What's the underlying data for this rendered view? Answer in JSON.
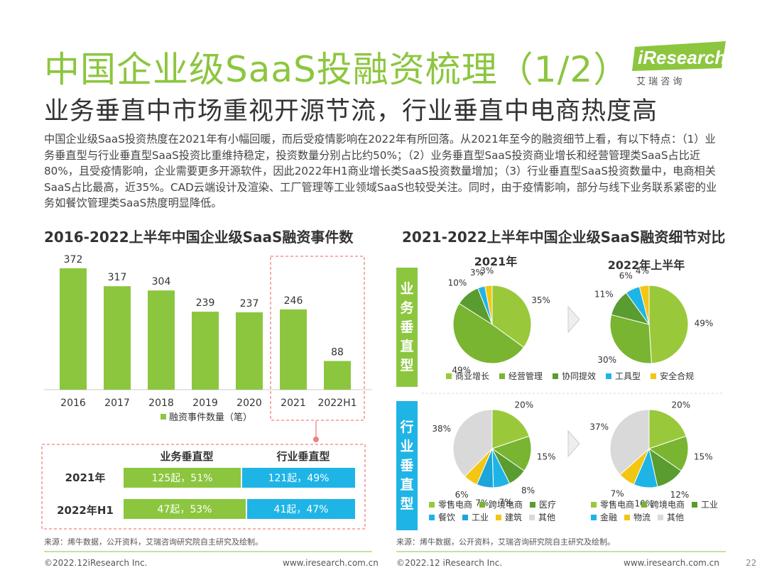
{
  "page": {
    "title": "中国企业级SaaS投融资梳理（1/2）",
    "subtitle": "业务垂直中市场重视开源节流，行业垂直中电商热度高",
    "intro": "中国企业级SaaS投资热度在2021年有小幅回暖，而后受疫情影响在2022年有所回落。从2021年至今的融资细节上看，有以下特点：（1）业务垂直型与行业垂直型SaaS投资比重维持稳定，投资数量分别占比约50%；（2）业务垂直型SaaS投资商业增长和经营管理类SaaS占比近80%，且受疫情影响，企业需要更多开源软件，因此2022年H1商业增长类SaaS投资数量增加；（3）行业垂直型SaaS投资数量中，电商相关SaaS占比最高，近35%。CAD云端设计及渲染、工厂管理等工业领域SaaS也较受关注。同时，由于疫情影响，部分与线下业务联系紧密的业务如餐饮管理类SaaS热度明显降低。",
    "logo_text": "iResearch",
    "logo_sub": "艾  瑞  咨  询",
    "page_number": "22",
    "footer_left_1": "©2022.12iResearch Inc.",
    "footer_mid_1": "www.iresearch.com.cn",
    "footer_left_2": "©2022.12 iResearch Inc.",
    "footer_right_2": "www.iresearch.com.cn",
    "source_left": "来源：烯牛数据，公开资料，艾瑞咨询研究院自主研究及绘制。",
    "source_right": "来源：烯牛数据，公开资料，艾瑞咨询研究院自主研究及绘制。"
  },
  "colors": {
    "green": "#8cc63f",
    "blue": "#1fb4e6",
    "dash": "#f08080"
  },
  "chart_data": [
    {
      "type": "bar",
      "title": "2016-2022上半年中国企业级SaaS融资事件数",
      "categories": [
        "2016",
        "2017",
        "2018",
        "2019",
        "2020",
        "2021",
        "2022H1"
      ],
      "series": [
        {
          "name": "融资事件数量（笔）",
          "values": [
            372,
            317,
            304,
            239,
            237,
            246,
            88
          ]
        }
      ],
      "ylim": [
        0,
        400
      ],
      "color": "#8cc63f",
      "grid": false,
      "legend": "bottom"
    },
    {
      "type": "table",
      "columns": [
        "业务垂直型",
        "行业垂直型"
      ],
      "rows": [
        {
          "label": "2021年",
          "cells": [
            "125起，51%",
            "121起，49%"
          ],
          "shares": [
            51,
            49
          ]
        },
        {
          "label": "2022年H1",
          "cells": [
            "47起，53%",
            "41起，47%"
          ],
          "shares": [
            53,
            47
          ]
        }
      ]
    },
    {
      "type": "pie",
      "title": "2021-2022上半年中国企业级SaaS融资细节对比",
      "group": "业务垂直型",
      "panels": [
        {
          "label": "2021年",
          "values": [
            35,
            49,
            10,
            3,
            3
          ],
          "labels": [
            "35%",
            "49%",
            "10%",
            "3%",
            "3%"
          ]
        },
        {
          "label": "2022年上半年",
          "values": [
            49,
            30,
            11,
            6,
            4
          ],
          "labels": [
            "49%",
            "30%",
            "11%",
            "6%",
            "4%"
          ]
        }
      ],
      "categories": [
        "商业增长",
        "经营管理",
        "协同提效",
        "工具型",
        "安全合规"
      ],
      "colors": [
        "#99c93b",
        "#79b531",
        "#5a9c2f",
        "#1fb4e6",
        "#f3c614"
      ]
    },
    {
      "type": "pie",
      "group": "行业垂直型",
      "panels": [
        {
          "values": [
            20,
            15,
            8,
            7,
            7,
            6,
            38
          ],
          "labels": [
            "20%",
            "15%",
            "8%",
            "7%",
            "7%",
            "6%",
            "38%"
          ]
        },
        {
          "values": [
            20,
            15,
            12,
            10,
            7,
            37
          ],
          "labels": [
            "20%",
            "15%",
            "12%",
            "10%",
            "7%",
            "37%"
          ]
        }
      ],
      "categories_2021": [
        "零售电商",
        "跨境电商",
        "医疗",
        "餐饮",
        "工业",
        "建筑",
        "其他"
      ],
      "categories_2022": [
        "零售电商",
        "跨境电商",
        "工业",
        "金融",
        "物流",
        "其他"
      ],
      "colors_2021": [
        "#99c93b",
        "#79b531",
        "#5a9c2f",
        "#1fb4e6",
        "#1ba5d8",
        "#f3c614",
        "#d9d9d9"
      ],
      "colors_2022": [
        "#99c93b",
        "#79b531",
        "#5a9c2f",
        "#1fb4e6",
        "#f3c614",
        "#d9d9d9"
      ]
    }
  ],
  "right_labels": {
    "biz": "业务垂直型",
    "ind": "行业垂直型"
  },
  "legends": {
    "biz": [
      {
        "label": "商业增长",
        "color": "#99c93b"
      },
      {
        "label": "经营管理",
        "color": "#79b531"
      },
      {
        "label": "协同提效",
        "color": "#5a9c2f"
      },
      {
        "label": "工具型",
        "color": "#1fb4e6"
      },
      {
        "label": "安全合规",
        "color": "#f3c614"
      }
    ],
    "ind2021": [
      {
        "label": "零售电商",
        "color": "#99c93b"
      },
      {
        "label": "跨境电商",
        "color": "#79b531"
      },
      {
        "label": "医疗",
        "color": "#5a9c2f"
      },
      {
        "label": "餐饮",
        "color": "#1fb4e6"
      },
      {
        "label": "工业",
        "color": "#1ba5d8"
      },
      {
        "label": "建筑",
        "color": "#f3c614"
      },
      {
        "label": "其他",
        "color": "#d9d9d9"
      }
    ],
    "ind2022": [
      {
        "label": "零售电商",
        "color": "#99c93b"
      },
      {
        "label": "跨境电商",
        "color": "#79b531"
      },
      {
        "label": "工业",
        "color": "#5a9c2f"
      },
      {
        "label": "金融",
        "color": "#1fb4e6"
      },
      {
        "label": "物流",
        "color": "#f3c614"
      },
      {
        "label": "其他",
        "color": "#d9d9d9"
      }
    ]
  }
}
